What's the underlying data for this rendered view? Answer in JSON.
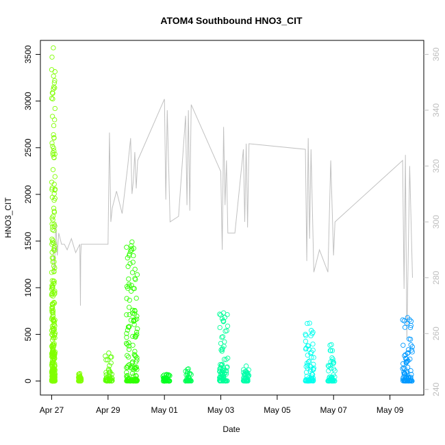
{
  "chart_data": {
    "type": "scatter",
    "title": "ATOM4 Southbound HNO3_CIT",
    "xlabel": "Date",
    "ylabel": "HNO3_CIT",
    "xlim_days": [
      -0.4,
      13.2
    ],
    "ylim": [
      -150,
      3650
    ],
    "y2lim": [
      238,
      365
    ],
    "x_ticks": [
      {
        "day": 0,
        "label": "Apr 27"
      },
      {
        "day": 2,
        "label": "Apr 29"
      },
      {
        "day": 4,
        "label": "May 01"
      },
      {
        "day": 6,
        "label": "May 03"
      },
      {
        "day": 8,
        "label": "May 05"
      },
      {
        "day": 10,
        "label": "May 07"
      },
      {
        "day": 12,
        "label": "May 09"
      }
    ],
    "y_ticks": [
      0,
      500,
      1000,
      1500,
      2000,
      2500,
      3000,
      3500
    ],
    "y2_ticks": [
      240,
      260,
      280,
      300,
      320,
      340,
      360
    ],
    "scatter_clusters": [
      {
        "day_start": 0.0,
        "day_end": 0.12,
        "max": 3570,
        "color": "#80ff00"
      },
      {
        "day_start": 0.95,
        "day_end": 1.05,
        "max": 80,
        "color": "#80ff00"
      },
      {
        "day_start": 1.9,
        "day_end": 2.15,
        "max": 300,
        "color": "#5bff00"
      },
      {
        "day_start": 2.65,
        "day_end": 3.05,
        "max": 1490,
        "color": "#30ff00"
      },
      {
        "day_start": 3.95,
        "day_end": 4.2,
        "max": 70,
        "color": "#00ff20"
      },
      {
        "day_start": 4.75,
        "day_end": 4.95,
        "max": 130,
        "color": "#00ff55"
      },
      {
        "day_start": 5.95,
        "day_end": 6.25,
        "max": 730,
        "color": "#00ff99"
      },
      {
        "day_start": 6.8,
        "day_end": 7.0,
        "max": 160,
        "color": "#00ffaa"
      },
      {
        "day_start": 9.0,
        "day_end": 9.3,
        "max": 620,
        "color": "#00ffee"
      },
      {
        "day_start": 9.8,
        "day_end": 10.05,
        "max": 390,
        "color": "#00ffdd"
      },
      {
        "day_start": 12.45,
        "day_end": 12.8,
        "max": 680,
        "color": "#0099ff"
      }
    ],
    "secondary_series": {
      "name": "right axis trace",
      "color": "#c0c0c0",
      "day": [
        0.05,
        0.1,
        0.15,
        0.2,
        0.25,
        0.35,
        0.45,
        0.55,
        0.7,
        0.85,
        1.0,
        1.02,
        1.03,
        1.05,
        2.0,
        2.05,
        2.1,
        2.15,
        2.3,
        2.5,
        2.7,
        2.8,
        2.85,
        2.9,
        2.95,
        3.0,
        3.05,
        4.0,
        4.05,
        4.1,
        4.2,
        4.5,
        4.75,
        4.8,
        4.85,
        4.9,
        4.95,
        6.0,
        6.05,
        6.1,
        6.15,
        6.2,
        6.25,
        6.5,
        6.8,
        6.85,
        6.9,
        6.95,
        7.0,
        9.0,
        9.05,
        9.1,
        9.15,
        9.2,
        9.3,
        9.5,
        9.8,
        9.9,
        10.0,
        10.05,
        12.45,
        12.5,
        12.55,
        12.6,
        12.7,
        12.8
      ],
      "values": [
        290,
        282,
        300,
        288,
        296,
        292,
        292,
        290,
        294,
        289,
        292,
        270,
        288,
        292,
        292,
        332,
        300,
        305,
        311,
        303,
        320,
        330,
        310,
        315,
        325,
        312,
        322,
        344,
        308,
        340,
        300,
        302,
        338,
        306,
        340,
        304,
        342,
        318,
        290,
        334,
        306,
        322,
        296,
        296,
        326,
        300,
        328,
        298,
        328,
        326,
        286,
        330,
        294,
        326,
        282,
        290,
        282,
        322,
        288,
        300,
        322,
        276,
        324,
        258,
        320,
        280
      ]
    }
  }
}
